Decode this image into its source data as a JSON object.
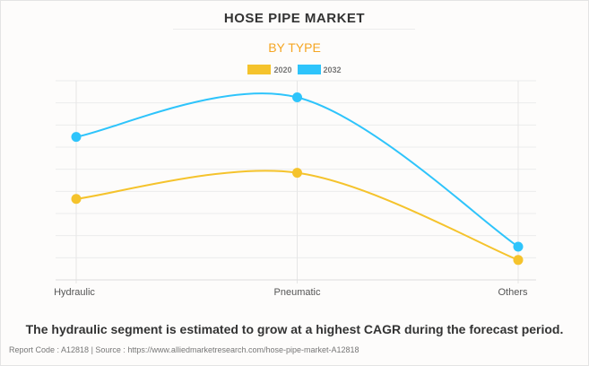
{
  "chart_data": {
    "type": "line",
    "title": "HOSE PIPE MARKET",
    "subtitle": "BY TYPE",
    "categories": [
      "Hydraulic",
      "Pneumatic",
      "Others"
    ],
    "series": [
      {
        "name": "2020",
        "color": "#f5c32c",
        "values": [
          3.66,
          4.84,
          0.9
        ]
      },
      {
        "name": "2032",
        "color": "#2ec4fb",
        "values": [
          6.46,
          8.25,
          1.5
        ]
      }
    ],
    "xlabel": "",
    "ylabel": "",
    "ylim": [
      0,
      9
    ],
    "grid": true,
    "legend": "top-center"
  },
  "caption": "The hydraulic segment is estimated to grow at a highest CAGR during the forecast period.",
  "source": "Report Code : A12818  |  Source : https://www.alliedmarketresearch.com/hose-pipe-market-A12818"
}
